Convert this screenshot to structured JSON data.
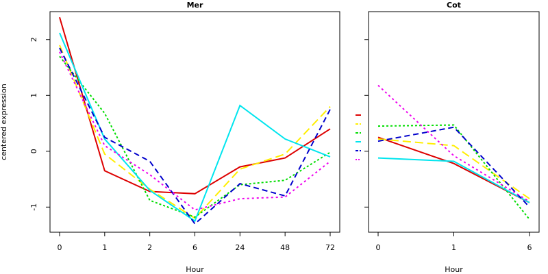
{
  "chart_data": [
    {
      "type": "line",
      "title": "Mer",
      "xlabel": "Hour",
      "ylabel": "centered expression",
      "categories": [
        "0",
        "1",
        "2",
        "6",
        "24",
        "48",
        "72"
      ],
      "ylim": [
        -1.45,
        2.5
      ],
      "yticks": [
        -1,
        0,
        1,
        2
      ],
      "series": [
        {
          "color": "#dd0000",
          "dash": "solid",
          "values": [
            2.4,
            -0.35,
            -0.72,
            -0.76,
            -0.28,
            -0.12,
            0.4
          ]
        },
        {
          "color": "#ffee00",
          "dash": "long-dash",
          "values": [
            1.9,
            -0.05,
            -0.68,
            -1.2,
            -0.32,
            -0.05,
            0.8
          ]
        },
        {
          "color": "#00dd00",
          "dash": "dotted-dash",
          "values": [
            1.7,
            0.68,
            -0.88,
            -1.18,
            -0.6,
            -0.52,
            -0.02
          ]
        },
        {
          "color": "#00e5ee",
          "dash": "solid",
          "values": [
            2.12,
            0.22,
            -0.7,
            -1.25,
            0.82,
            0.22,
            -0.1
          ]
        },
        {
          "color": "#0000cc",
          "dash": "dash",
          "values": [
            1.85,
            0.25,
            -0.18,
            -1.3,
            -0.58,
            -0.8,
            0.75
          ]
        },
        {
          "color": "#ee00ee",
          "dash": "dotted",
          "values": [
            1.78,
            0.1,
            -0.42,
            -1.05,
            -0.85,
            -0.82,
            -0.18
          ]
        }
      ]
    },
    {
      "type": "line",
      "title": "Cot",
      "xlabel": "Hour",
      "ylabel": "",
      "categories": [
        "0",
        "1",
        "6"
      ],
      "ylim": [
        -1.45,
        2.5
      ],
      "yticks": [
        -1,
        0,
        1,
        2
      ],
      "series": [
        {
          "color": "#dd0000",
          "dash": "solid",
          "values": [
            0.25,
            -0.22,
            -0.92
          ]
        },
        {
          "color": "#ffee00",
          "dash": "long-dash",
          "values": [
            0.22,
            0.1,
            -0.85
          ]
        },
        {
          "color": "#00dd00",
          "dash": "dotted-dash",
          "values": [
            0.45,
            0.47,
            -1.22
          ]
        },
        {
          "color": "#00e5ee",
          "dash": "solid",
          "values": [
            -0.12,
            -0.18,
            -0.92
          ]
        },
        {
          "color": "#0000cc",
          "dash": "dash",
          "values": [
            0.18,
            0.43,
            -1.0
          ]
        },
        {
          "color": "#ee00ee",
          "dash": "dotted",
          "values": [
            1.18,
            -0.08,
            -0.9
          ]
        }
      ]
    }
  ]
}
